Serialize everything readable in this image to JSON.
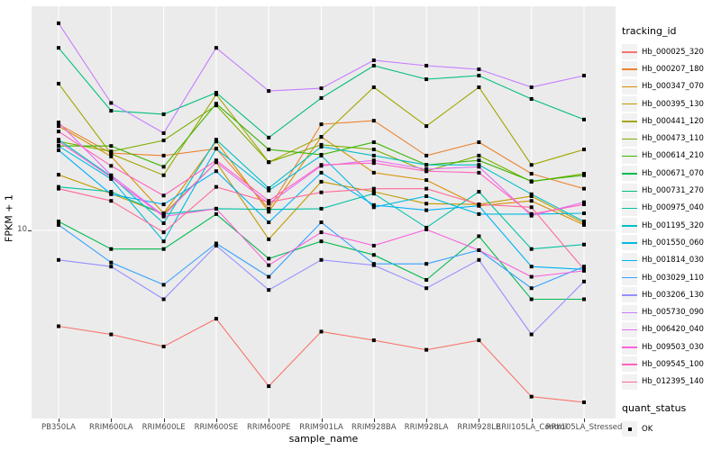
{
  "figure": {
    "background": "#FFFFFF",
    "panel_bg": "#EBEBEB",
    "grid_color": "#FFFFFF",
    "axis_text_color": "#4D4D4D",
    "marker_color": "#000000",
    "legend_key_bg": "#F2F2F2"
  },
  "chart_data": {
    "type": "line",
    "xlabel": "sample_name",
    "ylabel": "FPKM + 1",
    "y_scale": "log10",
    "y_ticks": [
      {
        "label": "10",
        "value": 10
      }
    ],
    "grid": "major-only",
    "legend_position": "right",
    "series_legend_title": "tracking_id",
    "point_shape": "filled-square",
    "point_legend": {
      "title": "quant_status",
      "items": [
        {
          "label": "OK"
        }
      ]
    },
    "categories": [
      "PB350LA",
      "RRIM600LA",
      "RRIM600LE",
      "RRIM600SE",
      "RRIM600PE",
      "RRIM901LA",
      "RRIM928BA",
      "RRIM928LA",
      "RRIM928LE",
      "RRII105LA_Control",
      "RRII105LA_Stressed"
    ],
    "series": [
      {
        "name": "Hb_000025_320",
        "color": "#F8766D",
        "values": [
          3.6,
          3.3,
          2.9,
          3.9,
          1.9,
          3.4,
          3.1,
          2.8,
          3.1,
          1.7,
          1.6
        ]
      },
      {
        "name": "Hb_000207_180",
        "color": "#EA8331",
        "values": [
          31,
          22.8,
          22.2,
          23.9,
          12.6,
          31,
          32.2,
          22.2,
          25.6,
          18.3,
          15.6
        ]
      },
      {
        "name": "Hb_000347_070",
        "color": "#D89000",
        "values": [
          30.4,
          22,
          12,
          25.8,
          12.2,
          27.1,
          18.5,
          17.1,
          13,
          13.7,
          10.6
        ]
      },
      {
        "name": "Hb_000395_130",
        "color": "#C09B00",
        "values": [
          18.1,
          14.8,
          11.9,
          20.7,
          9.1,
          16.8,
          15.1,
          13.3,
          13.2,
          14.4,
          10.8
        ]
      },
      {
        "name": "Hb_000441_120",
        "color": "#A3A500",
        "values": [
          47.8,
          22.6,
          18,
          42.6,
          20.7,
          27.1,
          46,
          30.4,
          46,
          20.1,
          23.7
        ]
      },
      {
        "name": "Hb_000473_110",
        "color": "#7CAE00",
        "values": [
          25.8,
          23.2,
          26.1,
          37.9,
          20.7,
          24.9,
          23.7,
          18.8,
          22.2,
          16.8,
          18.3
        ]
      },
      {
        "name": "Hb_000614_210",
        "color": "#39B600",
        "values": [
          24.6,
          24.6,
          19.7,
          38.6,
          23.7,
          22.4,
          25.6,
          20.1,
          21.1,
          16.9,
          18
        ]
      },
      {
        "name": "Hb_000671_070",
        "color": "#00BB4E",
        "values": [
          11,
          8.2,
          8.2,
          11.9,
          7.4,
          8.9,
          7.7,
          5.9,
          9.4,
          4.8,
          4.8
        ]
      },
      {
        "name": "Hb_000731_270",
        "color": "#00BF7D",
        "values": [
          70,
          35.8,
          34.5,
          43.4,
          26.9,
          41,
          57.9,
          50.1,
          52.1,
          40.6,
          32.6
        ]
      },
      {
        "name": "Hb_000975_040",
        "color": "#00C1A3",
        "values": [
          15.9,
          15.1,
          11.9,
          12.6,
          12.5,
          12.6,
          14.8,
          10.3,
          15.1,
          8.2,
          8.6
        ]
      },
      {
        "name": "Hb_001195_320",
        "color": "#00BFC4",
        "values": [
          26.3,
          17.8,
          10.8,
          26.3,
          15.7,
          24.4,
          22.2,
          20.1,
          20.1,
          14.7,
          11
        ]
      },
      {
        "name": "Hb_001550_060",
        "color": "#00BAE0",
        "values": [
          24.6,
          17.3,
          8.9,
          23.9,
          15.3,
          22.2,
          12.8,
          14.4,
          11.9,
          11.9,
          12
        ]
      },
      {
        "name": "Hb_001814_030",
        "color": "#00B0F6",
        "values": [
          23.5,
          14.7,
          13.2,
          18.8,
          10.9,
          18.5,
          13.1,
          12.4,
          13,
          6.8,
          6.6
        ]
      },
      {
        "name": "Hb_003029_110",
        "color": "#35A2FF",
        "values": [
          10.6,
          7.1,
          5.6,
          8.7,
          6.1,
          10.9,
          7,
          7,
          8.1,
          5.4,
          6.8
        ]
      },
      {
        "name": "Hb_003206_130",
        "color": "#9590FF",
        "values": [
          7.3,
          6.8,
          4.8,
          8.5,
          5.3,
          7.3,
          6.9,
          5.4,
          7.3,
          3.3,
          5.8
        ]
      },
      {
        "name": "Hb_005730_090",
        "color": "#C77CFF",
        "values": [
          91,
          38.9,
          28.2,
          70,
          44.2,
          45.5,
          61.3,
          57.9,
          55.7,
          46,
          52.1
        ]
      },
      {
        "name": "Hb_006420_040",
        "color": "#E76BF3",
        "values": [
          31.6,
          18,
          11.7,
          20.7,
          13.3,
          19.9,
          21.1,
          19.2,
          19.7,
          11.7,
          13.5
        ]
      },
      {
        "name": "Hb_009503_030",
        "color": "#FA62DB",
        "values": [
          25.8,
          17.6,
          11.6,
          12.6,
          6.9,
          9.8,
          8.5,
          10.1,
          8.1,
          6.1,
          6.5
        ]
      },
      {
        "name": "Hb_009545_100",
        "color": "#FF62BC",
        "values": [
          28.7,
          19.9,
          14.5,
          21.1,
          13.7,
          20.1,
          20.5,
          18.8,
          18.5,
          11.9,
          13.2
        ]
      },
      {
        "name": "Hb_012395_140",
        "color": "#FF6A98",
        "values": [
          15.6,
          13.7,
          9.8,
          15.9,
          13.5,
          15,
          15.6,
          15.6,
          13.2,
          12.8,
          6.6
        ]
      }
    ]
  }
}
